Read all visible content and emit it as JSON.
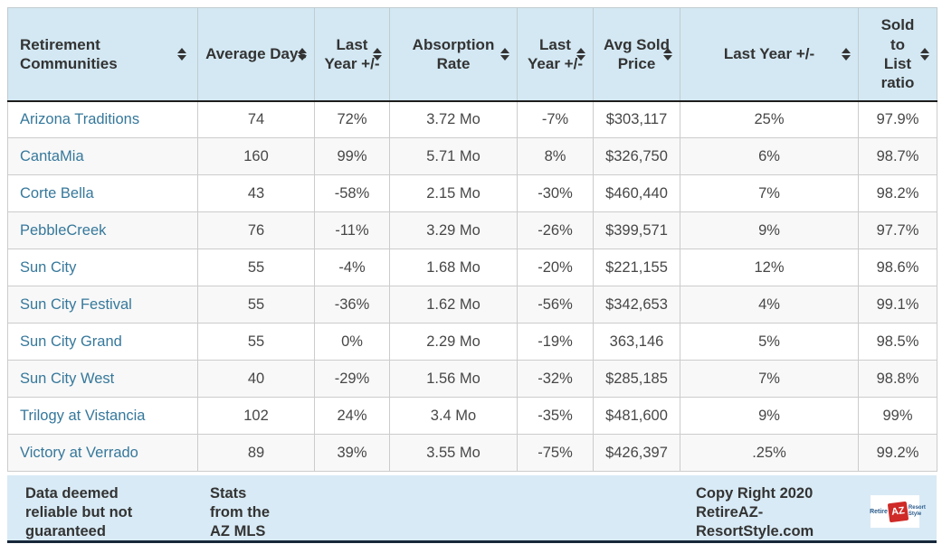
{
  "colors": {
    "header_bg": "#d3e8f3",
    "footer_bg": "#d8eaf5",
    "link": "#36789b",
    "cell_text": "#474747",
    "header_text": "#333333",
    "row_alt_bg": "#f8f8f8",
    "grid": "#cccccc",
    "header_divider": "#1d1d1d",
    "bottom_bar": "#17273a",
    "logo_red": "#cf2a27",
    "logo_blue": "#2a5b8c"
  },
  "chart_data": {
    "type": "table",
    "title": "Retirement Communities market stats",
    "columns": [
      "Retirement Communities",
      "Average Days",
      "Last Year +/-",
      "Absorption Rate",
      "Last Year +/-",
      "Avg Sold Price",
      "Last Year +/-",
      "Sold to List ratio"
    ],
    "sortable_columns": true,
    "rows": [
      [
        "Arizona Traditions",
        "74",
        "72%",
        "3.72 Mo",
        "-7%",
        "$303,117",
        "25%",
        "97.9%"
      ],
      [
        "CantaMia",
        "160",
        "99%",
        "5.71 Mo",
        "8%",
        "$326,750",
        "6%",
        "98.7%"
      ],
      [
        "Corte Bella",
        "43",
        "-58%",
        "2.15 Mo",
        "-30%",
        "$460,440",
        "7%",
        "98.2%"
      ],
      [
        "PebbleCreek",
        "76",
        "-11%",
        "3.29 Mo",
        "-26%",
        "$399,571",
        "9%",
        "97.7%"
      ],
      [
        "Sun City",
        "55",
        "-4%",
        "1.68 Mo",
        "-20%",
        "$221,155",
        "12%",
        "98.6%"
      ],
      [
        "Sun City Festival",
        "55",
        "-36%",
        "1.62 Mo",
        "-56%",
        "$342,653",
        "4%",
        "99.1%"
      ],
      [
        "Sun City Grand",
        "55",
        "0%",
        "2.29 Mo",
        "-19%",
        "363,146",
        "5%",
        "98.5%"
      ],
      [
        "Sun City West",
        "40",
        "-29%",
        "1.56 Mo",
        "-32%",
        "$285,185",
        "7%",
        "98.8%"
      ],
      [
        "Trilogy at Vistancia",
        "102",
        "24%",
        "3.4 Mo",
        "-35%",
        "$481,600",
        "9%",
        "99%"
      ],
      [
        "Victory at Verrado",
        "89",
        "39%",
        "3.55 Mo",
        "-75%",
        "$426,397",
        ".25%",
        "99.2%"
      ]
    ]
  },
  "footer": {
    "disclaimer": "Data deemed reliable but not guaranteed",
    "source": "Stats from the AZ MLS",
    "copyright": "Copy Right 2020 RetireAZ-ResortStyle.com",
    "logo": {
      "left": "Retire",
      "badge": "AZ",
      "right": "Resort Style"
    }
  }
}
